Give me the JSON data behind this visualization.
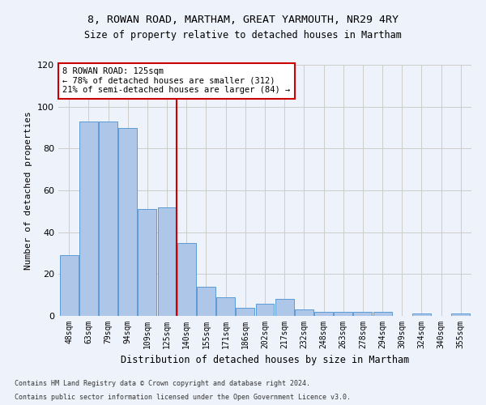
{
  "title1": "8, ROWAN ROAD, MARTHAM, GREAT YARMOUTH, NR29 4RY",
  "title2": "Size of property relative to detached houses in Martham",
  "xlabel": "Distribution of detached houses by size in Martham",
  "ylabel": "Number of detached properties",
  "categories": [
    "48sqm",
    "63sqm",
    "79sqm",
    "94sqm",
    "109sqm",
    "125sqm",
    "140sqm",
    "155sqm",
    "171sqm",
    "186sqm",
    "202sqm",
    "217sqm",
    "232sqm",
    "248sqm",
    "263sqm",
    "278sqm",
    "294sqm",
    "309sqm",
    "324sqm",
    "340sqm",
    "355sqm"
  ],
  "values": [
    29,
    93,
    93,
    90,
    51,
    52,
    35,
    14,
    9,
    4,
    6,
    8,
    3,
    2,
    2,
    2,
    2,
    0,
    1,
    0,
    1
  ],
  "bar_color": "#aec6e8",
  "bar_edge_color": "#5b9bd5",
  "annotation_title": "8 ROWAN ROAD: 125sqm",
  "annotation_line1": "← 78% of detached houses are smaller (312)",
  "annotation_line2": "21% of semi-detached houses are larger (84) →",
  "footer1": "Contains HM Land Registry data © Crown copyright and database right 2024.",
  "footer2": "Contains public sector information licensed under the Open Government Licence v3.0.",
  "ylim": [
    0,
    120
  ],
  "bg_color": "#eef2fb",
  "annotation_box_color": "#ffffff",
  "annotation_box_edge": "#cc0000",
  "vline_color": "#cc0000",
  "vline_x_index": 5
}
